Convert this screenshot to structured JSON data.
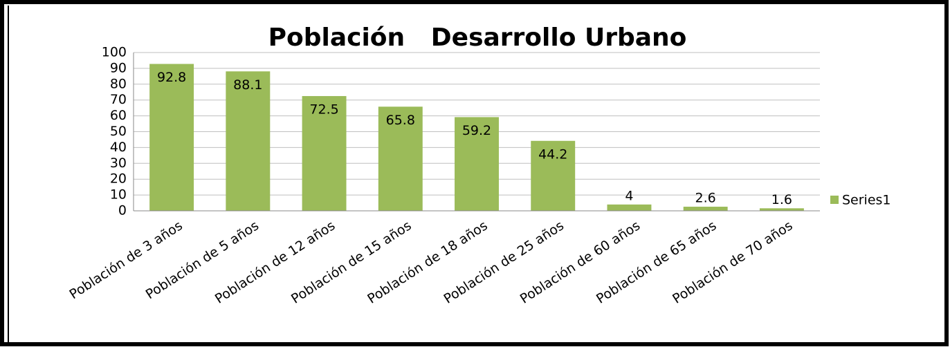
{
  "chart_data": {
    "type": "bar",
    "title": "Población   Desarrollo Urbano",
    "categories": [
      "Población de 3 años",
      "Población de 5 años",
      "Población de 12 años",
      "Población de 15 años",
      "Población de 18 años",
      "Población de 25 años",
      "Población de 60 años",
      "Población de 65 años",
      "Población de 70 años"
    ],
    "series": [
      {
        "name": "Series1",
        "color": "#9bbb59",
        "values": [
          92.8,
          88.1,
          72.5,
          65.8,
          59.2,
          44.2,
          4,
          2.6,
          1.6
        ]
      }
    ],
    "ylim": [
      0,
      100
    ],
    "yticks": [
      0,
      10,
      20,
      30,
      40,
      50,
      60,
      70,
      80,
      90,
      100
    ],
    "grid": true,
    "legend": "right"
  }
}
